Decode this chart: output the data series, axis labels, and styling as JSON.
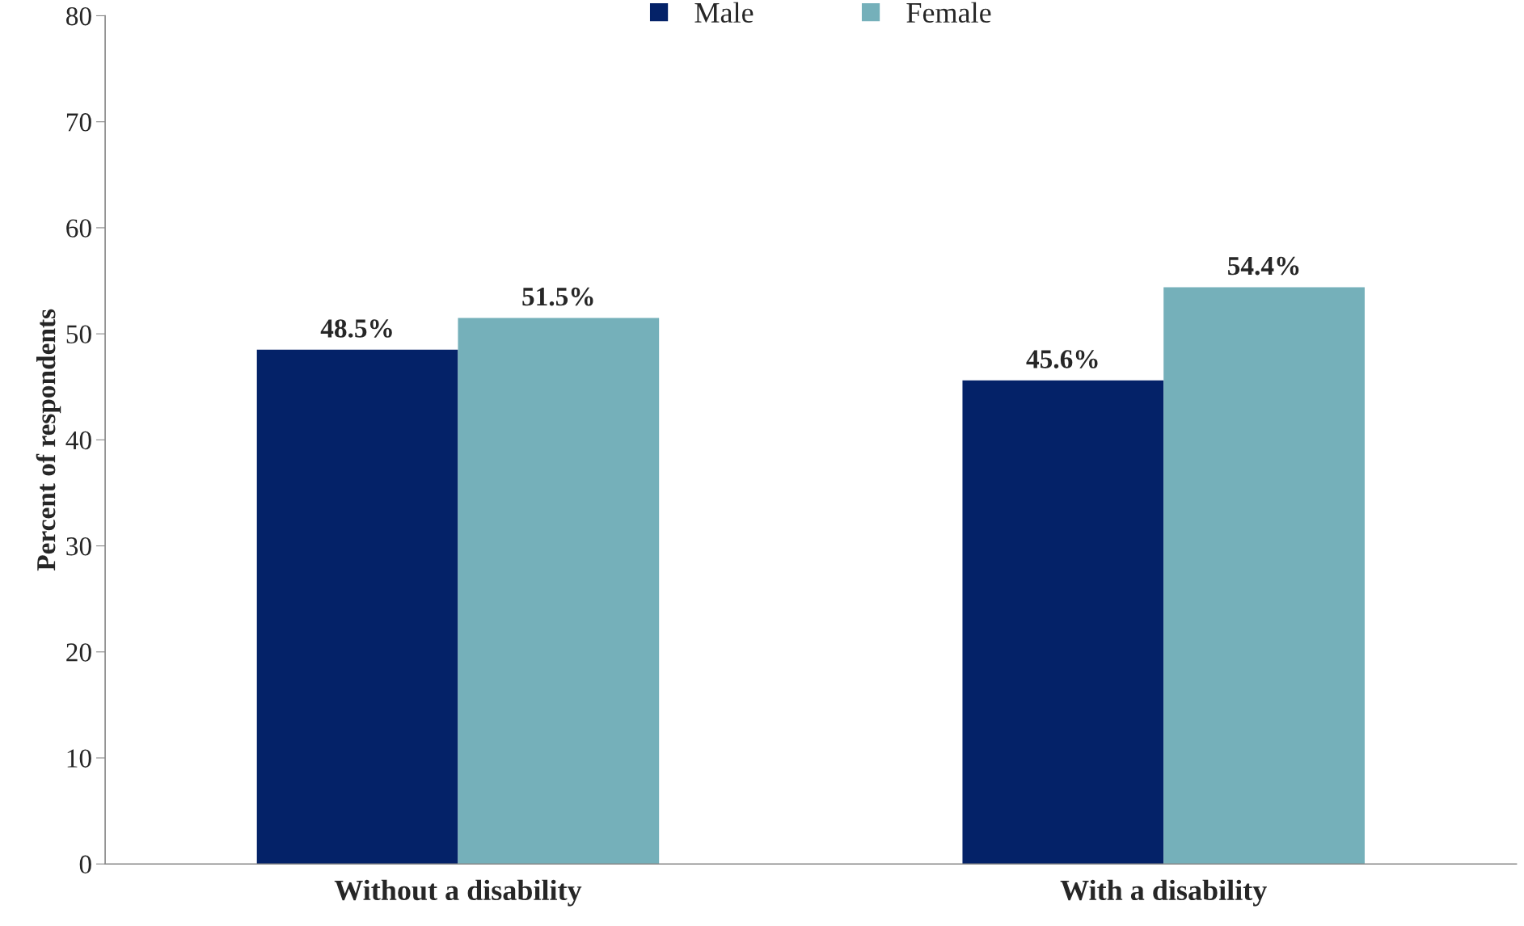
{
  "chart_data": {
    "type": "bar",
    "ylabel": "Percent of respondents",
    "categories": [
      "Without a disability",
      "With a disability"
    ],
    "series": [
      {
        "name": "Male",
        "color": "#042268",
        "values": [
          48.5,
          45.6
        ],
        "value_labels": [
          "48.5%",
          "45.6%"
        ]
      },
      {
        "name": "Female",
        "color": "#75b0ba",
        "values": [
          51.5,
          54.4
        ],
        "value_labels": [
          "51.5%",
          "54.4%"
        ]
      }
    ],
    "ylim": [
      0,
      80
    ],
    "yticks": [
      0,
      10,
      20,
      30,
      40,
      50,
      60,
      70,
      80
    ],
    "grid": false,
    "legend": "top"
  }
}
